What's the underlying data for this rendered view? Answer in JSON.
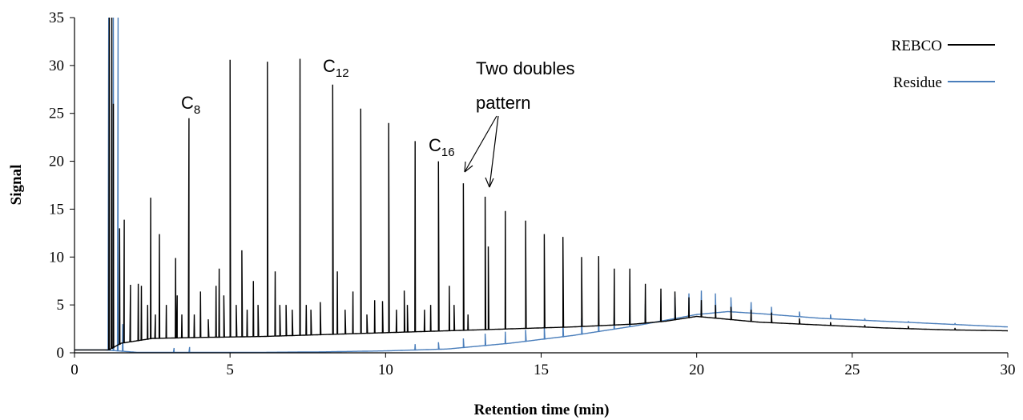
{
  "chart_data": {
    "type": "line",
    "title": "",
    "xlabel": "Retention time (min)",
    "ylabel": "Signal",
    "xlim": [
      0,
      30
    ],
    "ylim": [
      0,
      35
    ],
    "x_ticks": [
      0,
      5,
      10,
      15,
      20,
      25,
      30
    ],
    "y_ticks": [
      0,
      5,
      10,
      15,
      20,
      25,
      30,
      35
    ],
    "grid": false,
    "legend_position": "top-right",
    "colors": {
      "REBCO": "#000000",
      "Residue": "#4a7ebb"
    },
    "series": [
      {
        "name": "REBCO",
        "baseline": [
          [
            0,
            0.3
          ],
          [
            1.0,
            0.3
          ],
          [
            1.1,
            0.3
          ],
          [
            1.5,
            1.0
          ],
          [
            2.5,
            1.5
          ],
          [
            4,
            1.6
          ],
          [
            6,
            1.7
          ],
          [
            8,
            1.9
          ],
          [
            10,
            2.1
          ],
          [
            12,
            2.3
          ],
          [
            14,
            2.5
          ],
          [
            16,
            2.7
          ],
          [
            18,
            3.0
          ],
          [
            19,
            3.3
          ],
          [
            20,
            3.8
          ],
          [
            21,
            3.5
          ],
          [
            22,
            3.2
          ],
          [
            24,
            2.9
          ],
          [
            26,
            2.6
          ],
          [
            28,
            2.4
          ],
          [
            30,
            2.3
          ]
        ],
        "peaks": [
          [
            1.12,
            35
          ],
          [
            1.2,
            35
          ],
          [
            1.25,
            26
          ],
          [
            1.45,
            13
          ],
          [
            1.6,
            13.9
          ],
          [
            1.8,
            7.1
          ],
          [
            2.05,
            7.2
          ],
          [
            2.15,
            7
          ],
          [
            2.35,
            5
          ],
          [
            2.45,
            16.2
          ],
          [
            2.6,
            4
          ],
          [
            2.73,
            12.4
          ],
          [
            2.95,
            5
          ],
          [
            3.25,
            9.9
          ],
          [
            3.3,
            6
          ],
          [
            3.45,
            4
          ],
          [
            3.68,
            24.5
          ],
          [
            3.85,
            4
          ],
          [
            4.05,
            6.4
          ],
          [
            4.3,
            3.5
          ],
          [
            4.55,
            7
          ],
          [
            4.65,
            8.8
          ],
          [
            4.8,
            6
          ],
          [
            5.0,
            30.6
          ],
          [
            5.2,
            5
          ],
          [
            5.38,
            10.7
          ],
          [
            5.55,
            4.5
          ],
          [
            5.75,
            7.5
          ],
          [
            5.9,
            5
          ],
          [
            6.2,
            30.4
          ],
          [
            6.45,
            8.5
          ],
          [
            6.6,
            5
          ],
          [
            6.8,
            5
          ],
          [
            7.0,
            4.5
          ],
          [
            7.25,
            30.7
          ],
          [
            7.45,
            5
          ],
          [
            7.6,
            4.5
          ],
          [
            7.9,
            5.3
          ],
          [
            8.3,
            28
          ],
          [
            8.45,
            8.5
          ],
          [
            8.7,
            4.5
          ],
          [
            8.95,
            6.4
          ],
          [
            9.2,
            25.5
          ],
          [
            9.4,
            4
          ],
          [
            9.65,
            5.5
          ],
          [
            9.9,
            5.4
          ],
          [
            10.1,
            24
          ],
          [
            10.35,
            4.5
          ],
          [
            10.6,
            6.5
          ],
          [
            10.7,
            5
          ],
          [
            10.95,
            22.1
          ],
          [
            11.25,
            4.5
          ],
          [
            11.45,
            5
          ],
          [
            11.7,
            20
          ],
          [
            12.05,
            7
          ],
          [
            12.2,
            5
          ],
          [
            12.5,
            17.7
          ],
          [
            12.65,
            4
          ],
          [
            13.2,
            16.3
          ],
          [
            13.3,
            11.1
          ],
          [
            13.85,
            14.8
          ],
          [
            14.5,
            13.8
          ],
          [
            15.1,
            12.4
          ],
          [
            15.7,
            12.1
          ],
          [
            16.3,
            10
          ],
          [
            16.85,
            10.1
          ],
          [
            17.35,
            8.8
          ],
          [
            17.85,
            8.8
          ],
          [
            18.35,
            7.2
          ],
          [
            18.85,
            6.7
          ],
          [
            19.3,
            6.4
          ],
          [
            19.75,
            5.8
          ],
          [
            20.15,
            5.5
          ],
          [
            20.6,
            5
          ],
          [
            21.1,
            4.8
          ],
          [
            21.75,
            4.5
          ],
          [
            22.4,
            4.2
          ],
          [
            23.3,
            3.6
          ],
          [
            24.3,
            3.2
          ],
          [
            25.4,
            2.9
          ],
          [
            26.8,
            2.8
          ],
          [
            28.3,
            2.6
          ]
        ]
      },
      {
        "name": "Residue",
        "baseline": [
          [
            0,
            0.3
          ],
          [
            1.0,
            0.3
          ],
          [
            1.4,
            0.2
          ],
          [
            2,
            0.05
          ],
          [
            4,
            0.05
          ],
          [
            6,
            0.05
          ],
          [
            8,
            0.1
          ],
          [
            10,
            0.2
          ],
          [
            12,
            0.4
          ],
          [
            14,
            1.0
          ],
          [
            16,
            1.8
          ],
          [
            18,
            2.8
          ],
          [
            19,
            3.4
          ],
          [
            20,
            4.0
          ],
          [
            21,
            4.3
          ],
          [
            22,
            4.1
          ],
          [
            24,
            3.6
          ],
          [
            26,
            3.3
          ],
          [
            28,
            3.0
          ],
          [
            30,
            2.7
          ]
        ],
        "peaks": [
          [
            1.1,
            35
          ],
          [
            1.25,
            35
          ],
          [
            1.4,
            35
          ],
          [
            1.55,
            3
          ],
          [
            3.2,
            0.5
          ],
          [
            3.7,
            0.6
          ],
          [
            10.95,
            0.9
          ],
          [
            11.7,
            1.1
          ],
          [
            12.5,
            1.5
          ],
          [
            13.2,
            2
          ],
          [
            13.85,
            2.2
          ],
          [
            14.5,
            2.4
          ],
          [
            15.1,
            2.8
          ],
          [
            15.7,
            3.2
          ],
          [
            16.3,
            3.6
          ],
          [
            16.85,
            4
          ],
          [
            17.35,
            4.4
          ],
          [
            17.85,
            4.8
          ],
          [
            18.35,
            5.1
          ],
          [
            18.85,
            5.5
          ],
          [
            19.3,
            5.8
          ],
          [
            19.75,
            6.2
          ],
          [
            20.15,
            6.5
          ],
          [
            20.6,
            6.2
          ],
          [
            21.1,
            5.8
          ],
          [
            21.75,
            5.3
          ],
          [
            22.4,
            4.8
          ],
          [
            23.3,
            4.3
          ],
          [
            24.3,
            4.0
          ],
          [
            25.4,
            3.6
          ],
          [
            26.8,
            3.3
          ],
          [
            28.3,
            3.1
          ]
        ]
      }
    ],
    "annotations": [
      {
        "id": "c8",
        "base": "C",
        "sub": "8"
      },
      {
        "id": "c12",
        "base": "C",
        "sub": "12"
      },
      {
        "id": "c16",
        "base": "C",
        "sub": "16"
      },
      {
        "id": "doubles",
        "line1": "Two doubles",
        "line2": "pattern"
      }
    ]
  }
}
